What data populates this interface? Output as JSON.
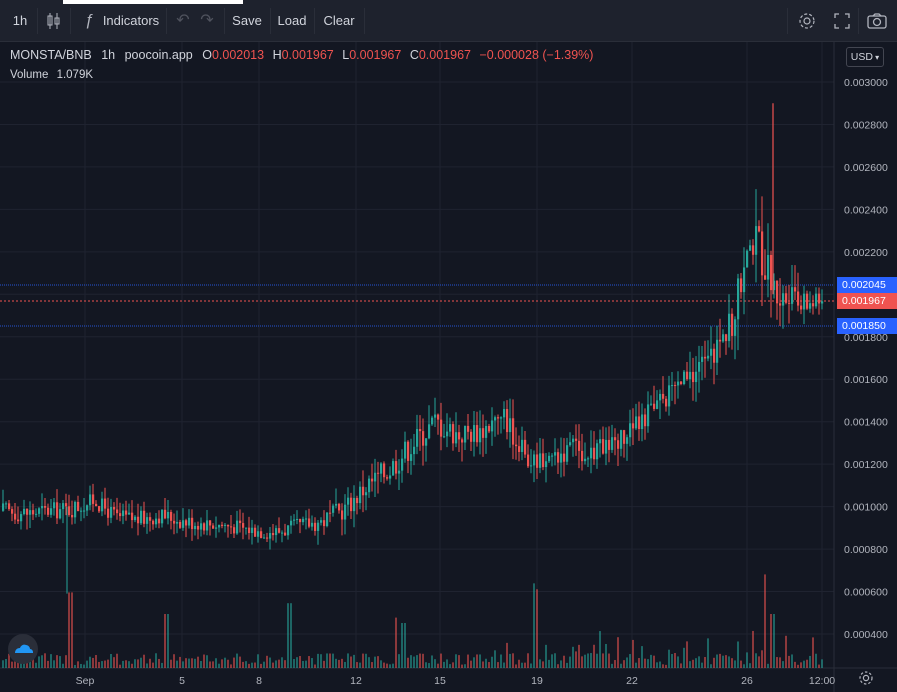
{
  "toolbar": {
    "interval": "1h",
    "indicators": "Indicators",
    "save": "Save",
    "load": "Load",
    "clear": "Clear",
    "icons": [
      "candles-icon",
      "fx-icon",
      "undo-icon",
      "redo-icon",
      "settings-icon",
      "fullscreen-icon",
      "camera-icon"
    ]
  },
  "legend": {
    "symbol": "MONSTA/BNB",
    "interval": "1h",
    "source": "poocoin.app",
    "o_label": "O",
    "o": "0.002013",
    "h_label": "H",
    "h": "0.001967",
    "l_label": "L",
    "l": "0.001967",
    "c_label": "C",
    "c": "0.001967",
    "change": "−0.000028 (−1.39%)",
    "volume_label": "Volume",
    "volume": "1.079K"
  },
  "currency": "USD",
  "price_tags": {
    "upper": "0.002045",
    "current": "0.001967",
    "lower": "0.001850"
  },
  "colors": {
    "up": "#26a69a",
    "down": "#ef5350",
    "background": "#131722",
    "toolbar": "#1e222d",
    "tag_blue": "#2962ff"
  },
  "chart_data": {
    "type": "candlestick",
    "title": "MONSTA/BNB",
    "ylim": [
      0.00031,
      0.00303
    ],
    "y_ticks": [
      "0.003000",
      "0.002800",
      "0.002600",
      "0.002400",
      "0.002200",
      "0.002000",
      "0.001800",
      "0.001600",
      "0.001400",
      "0.001200",
      "0.001000",
      "0.000800",
      "0.000600",
      "0.000400"
    ],
    "x_ticks": [
      "Sep",
      "5",
      "8",
      "12",
      "15",
      "19",
      "22",
      "26",
      "12:00"
    ],
    "price_path": [
      [
        0.00098,
        0.0001
      ],
      [
        0.00097,
        0.0001
      ],
      [
        0.00098,
        9e-05
      ],
      [
        0.00099,
        0.0001
      ],
      [
        0.00103,
        8e-05
      ],
      [
        0.00095,
        9e-05
      ],
      [
        0.00094,
        9e-05
      ],
      [
        0.00096,
        8e-05
      ],
      [
        0.00093,
        9e-05
      ],
      [
        0.00092,
        8e-05
      ],
      [
        0.00091,
        8e-05
      ],
      [
        0.00089,
        8e-05
      ],
      [
        0.00088,
        9e-05
      ],
      [
        0.00091,
        8e-05
      ],
      [
        0.00093,
        0.0001
      ],
      [
        0.00099,
        0.00011
      ],
      [
        0.0011,
        0.00013
      ],
      [
        0.00118,
        0.00014
      ],
      [
        0.0013,
        0.00014
      ],
      [
        0.0014,
        0.00015
      ],
      [
        0.00134,
        0.00014
      ],
      [
        0.00136,
        0.00013
      ],
      [
        0.00143,
        0.00014
      ],
      [
        0.00122,
        0.00012
      ],
      [
        0.00124,
        0.00012
      ],
      [
        0.00127,
        0.00012
      ],
      [
        0.00126,
        0.00012
      ],
      [
        0.00132,
        0.00012
      ],
      [
        0.0014,
        0.00012
      ],
      [
        0.00151,
        0.00013
      ],
      [
        0.0016,
        0.00014
      ],
      [
        0.0017,
        0.00015
      ],
      [
        0.00185,
        0.00017
      ],
      [
        0.0023,
        0.0003
      ],
      [
        0.002,
        0.00018
      ],
      [
        0.00195,
        0.00015
      ],
      [
        0.00198,
        0.00013
      ]
    ],
    "volume_spikes": [
      {
        "x_frac": 0.082,
        "v": 4.2
      },
      {
        "x_frac": 0.2,
        "v": 3.0
      },
      {
        "x_frac": 0.35,
        "v": 3.6
      },
      {
        "x_frac": 0.48,
        "v": 2.8
      },
      {
        "x_frac": 0.49,
        "v": 2.5
      },
      {
        "x_frac": 0.65,
        "v": 3.5
      },
      {
        "x_frac": 0.93,
        "v": 5.2
      },
      {
        "x_frac": 0.94,
        "v": 3.0
      }
    ]
  }
}
